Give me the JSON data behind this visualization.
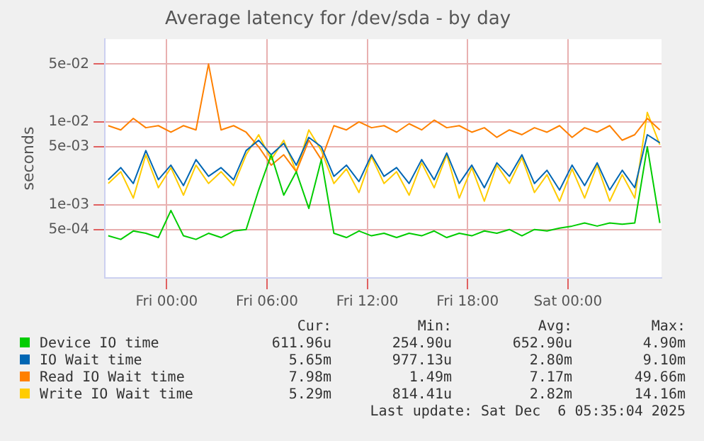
{
  "chart_data": {
    "type": "line",
    "title": "Average latency for /dev/sda - by day",
    "ylabel": "seconds",
    "log": "y",
    "grid": true,
    "legend": "bottom",
    "marker": "none",
    "line_style": "solid",
    "x": [
      "2025-12-04T20:30",
      "2025-12-04T21:15",
      "2025-12-04T22:00",
      "2025-12-04T22:45",
      "2025-12-04T23:30",
      "2025-12-05T00:15",
      "2025-12-05T01:00",
      "2025-12-05T01:45",
      "2025-12-05T02:30",
      "2025-12-05T03:15",
      "2025-12-05T04:00",
      "2025-12-05T04:45",
      "2025-12-05T05:30",
      "2025-12-05T06:15",
      "2025-12-05T07:00",
      "2025-12-05T07:45",
      "2025-12-05T08:30",
      "2025-12-05T09:15",
      "2025-12-05T10:00",
      "2025-12-05T10:45",
      "2025-12-05T11:30",
      "2025-12-05T12:15",
      "2025-12-05T13:00",
      "2025-12-05T13:45",
      "2025-12-05T14:30",
      "2025-12-05T15:15",
      "2025-12-05T16:00",
      "2025-12-05T16:45",
      "2025-12-05T17:30",
      "2025-12-05T18:15",
      "2025-12-05T19:00",
      "2025-12-05T19:45",
      "2025-12-05T20:30",
      "2025-12-05T21:15",
      "2025-12-05T22:00",
      "2025-12-05T22:45",
      "2025-12-05T23:30",
      "2025-12-06T00:15",
      "2025-12-06T01:00",
      "2025-12-06T01:45",
      "2025-12-06T02:30",
      "2025-12-06T03:15",
      "2025-12-06T04:00",
      "2025-12-06T04:45",
      "2025-12-06T05:30"
    ],
    "xlim": [
      "2025-12-04T20:18",
      "2025-12-06T05:36"
    ],
    "xticks": [
      {
        "value": "2025-12-05T00:00",
        "label": "Fri 00:00"
      },
      {
        "value": "2025-12-05T06:00",
        "label": "Fri 06:00"
      },
      {
        "value": "2025-12-05T12:00",
        "label": "Fri 12:00"
      },
      {
        "value": "2025-12-05T18:00",
        "label": "Fri 18:00"
      },
      {
        "value": "2025-12-06T00:00",
        "label": "Sat 00:00"
      }
    ],
    "ylim": [
      0.00013,
      0.1
    ],
    "yticks": [
      {
        "value": 0.0005,
        "label": "5e-04"
      },
      {
        "value": 0.001,
        "label": "1e-03"
      },
      {
        "value": 0.005,
        "label": "5e-03"
      },
      {
        "value": 0.01,
        "label": "1e-02"
      },
      {
        "value": 0.05,
        "label": "5e-02"
      }
    ],
    "series": [
      {
        "name": "Device IO time",
        "color": "#00cc00",
        "values": [
          0.00042,
          0.00038,
          0.00048,
          0.00045,
          0.0004,
          0.00085,
          0.00042,
          0.00038,
          0.00045,
          0.0004,
          0.00048,
          0.0005,
          0.0015,
          0.004,
          0.0013,
          0.0025,
          0.0009,
          0.0035,
          0.00045,
          0.0004,
          0.00048,
          0.00042,
          0.00045,
          0.0004,
          0.00045,
          0.00042,
          0.00048,
          0.0004,
          0.00045,
          0.00042,
          0.00048,
          0.00045,
          0.0005,
          0.00042,
          0.0005,
          0.00048,
          0.00052,
          0.00055,
          0.0006,
          0.00055,
          0.0006,
          0.00058,
          0.0006,
          0.005,
          0.0006
        ]
      },
      {
        "name": "IO Wait time",
        "color": "#0066b3",
        "values": [
          0.002,
          0.0028,
          0.0018,
          0.0045,
          0.002,
          0.003,
          0.0017,
          0.0035,
          0.0022,
          0.0028,
          0.002,
          0.0045,
          0.006,
          0.004,
          0.0055,
          0.003,
          0.0065,
          0.005,
          0.0022,
          0.003,
          0.0019,
          0.004,
          0.0022,
          0.0028,
          0.0018,
          0.0035,
          0.002,
          0.0042,
          0.0018,
          0.003,
          0.0016,
          0.0032,
          0.0022,
          0.004,
          0.0018,
          0.0026,
          0.0015,
          0.003,
          0.0017,
          0.0032,
          0.0015,
          0.0026,
          0.0016,
          0.007,
          0.0056
        ]
      },
      {
        "name": "Read IO Wait time",
        "color": "#ff8000",
        "values": [
          0.009,
          0.008,
          0.011,
          0.0085,
          0.009,
          0.0075,
          0.009,
          0.008,
          0.05,
          0.008,
          0.009,
          0.0075,
          0.005,
          0.003,
          0.004,
          0.0025,
          0.006,
          0.0035,
          0.009,
          0.008,
          0.01,
          0.0085,
          0.009,
          0.0075,
          0.0095,
          0.008,
          0.0105,
          0.0085,
          0.009,
          0.0075,
          0.0085,
          0.0065,
          0.008,
          0.007,
          0.0085,
          0.0075,
          0.009,
          0.0065,
          0.0085,
          0.0075,
          0.009,
          0.006,
          0.007,
          0.011,
          0.008
        ]
      },
      {
        "name": "Write IO Wait time",
        "color": "#ffcc00",
        "values": [
          0.0018,
          0.0025,
          0.0012,
          0.004,
          0.0016,
          0.0028,
          0.0013,
          0.003,
          0.0018,
          0.0025,
          0.0017,
          0.004,
          0.007,
          0.0035,
          0.006,
          0.0025,
          0.008,
          0.0045,
          0.0018,
          0.0027,
          0.0014,
          0.0038,
          0.0018,
          0.0025,
          0.0013,
          0.0032,
          0.0016,
          0.004,
          0.0012,
          0.0028,
          0.0011,
          0.003,
          0.0018,
          0.0037,
          0.0014,
          0.0023,
          0.0011,
          0.0027,
          0.0012,
          0.003,
          0.0011,
          0.0023,
          0.0012,
          0.013,
          0.0053
        ]
      }
    ],
    "annotations": [
      "Cur:",
      "Min:",
      "Avg:",
      "Max:",
      "611.96u",
      "254.90u",
      "652.90u",
      "4.90m",
      "5.65m",
      "977.13u",
      "2.80m",
      "9.10m",
      "7.98m",
      "1.49m",
      "7.17m",
      "49.66m",
      "5.29m",
      "814.41u",
      "2.82m",
      "14.16m",
      "Last update: Sat Dec  6 05:35:04 2025"
    ]
  }
}
